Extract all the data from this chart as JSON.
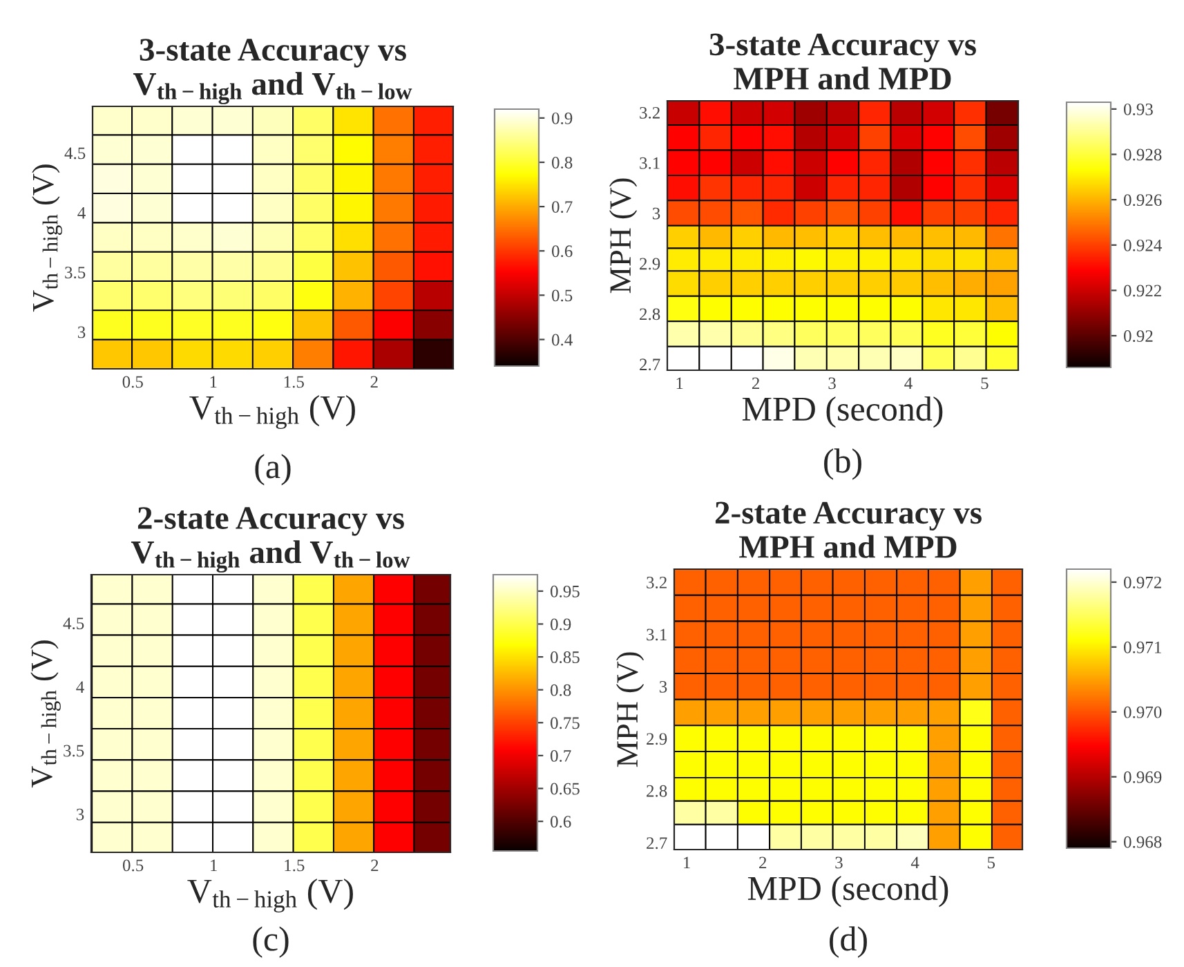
{
  "chart_data": [
    {
      "type": "heatmap",
      "title": "3-state Accuracy vs\nV$_{th−high}$ and V$_{th−low}$",
      "xlabel": "V$_{th−high}$ (V)",
      "ylabel": "V$_{th−high}$ (V)",
      "annotations": [
        "(a)"
      ],
      "x": [
        0.37,
        0.62,
        0.87,
        1.12,
        1.37,
        1.62,
        1.87,
        2.12,
        2.37
      ],
      "y": [
        4.77,
        4.53,
        4.28,
        4.04,
        3.79,
        3.55,
        3.3,
        3.06,
        2.81
      ],
      "xlim": [
        0.25,
        2.49
      ],
      "ylim": [
        2.69,
        4.89
      ],
      "xticks": [
        0.5,
        1,
        1.5,
        2
      ],
      "yticks": [
        3,
        3.5,
        4,
        4.5
      ],
      "clim": [
        0.34,
        0.92
      ],
      "cticks": [
        0.4,
        0.5,
        0.6,
        0.7,
        0.8,
        0.9
      ],
      "cells": [
        [
          0.89,
          0.89,
          0.895,
          0.895,
          0.88,
          0.83,
          0.75,
          0.65,
          0.58
        ],
        [
          0.895,
          0.895,
          0.92,
          0.92,
          0.885,
          0.835,
          0.77,
          0.66,
          0.58
        ],
        [
          0.9,
          0.895,
          0.92,
          0.92,
          0.885,
          0.83,
          0.765,
          0.655,
          0.58
        ],
        [
          0.9,
          0.895,
          0.92,
          0.92,
          0.885,
          0.83,
          0.765,
          0.655,
          0.575
        ],
        [
          0.885,
          0.885,
          0.89,
          0.895,
          0.875,
          0.83,
          0.745,
          0.65,
          0.575
        ],
        [
          0.865,
          0.865,
          0.87,
          0.87,
          0.855,
          0.81,
          0.72,
          0.63,
          0.565
        ],
        [
          0.835,
          0.835,
          0.845,
          0.84,
          0.83,
          0.78,
          0.705,
          0.61,
          0.49
        ],
        [
          0.79,
          0.79,
          0.795,
          0.79,
          0.78,
          0.72,
          0.63,
          0.55,
          0.45
        ],
        [
          0.725,
          0.725,
          0.74,
          0.74,
          0.73,
          0.66,
          0.57,
          0.48,
          0.37
        ]
      ]
    },
    {
      "type": "heatmap",
      "title": "3-state Accuracy vs\nMPH and MPD",
      "xlabel": "MPD (second)",
      "ylabel": "MPH (V)",
      "annotations": [
        "(b)"
      ],
      "x": [
        1.05,
        1.47,
        1.89,
        2.3,
        2.72,
        3.14,
        3.56,
        3.98,
        4.39,
        4.81,
        5.23
      ],
      "y": [
        3.2,
        3.15,
        3.1,
        3.05,
        3.0,
        2.95,
        2.91,
        2.86,
        2.81,
        2.76,
        2.71
      ],
      "xlim": [
        0.84,
        5.44
      ],
      "ylim": [
        2.688,
        3.223
      ],
      "xticks": [
        1,
        2,
        3,
        4,
        5
      ],
      "yticks": [
        2.7,
        2.8,
        2.9,
        3,
        3.1,
        3.2
      ],
      "clim": [
        0.9186,
        0.9303
      ],
      "cticks": [
        0.92,
        0.922,
        0.924,
        0.926,
        0.928,
        0.93
      ],
      "cells": [
        [
          0.9219,
          0.9231,
          0.922,
          0.9221,
          0.9212,
          0.9217,
          0.9235,
          0.9217,
          0.9221,
          0.9237,
          0.9205
        ],
        [
          0.9229,
          0.9235,
          0.9229,
          0.9231,
          0.9216,
          0.9221,
          0.924,
          0.9223,
          0.9229,
          0.9242,
          0.9212
        ],
        [
          0.9229,
          0.9229,
          0.922,
          0.9231,
          0.922,
          0.9229,
          0.9235,
          0.9215,
          0.9229,
          0.9237,
          0.9217
        ],
        [
          0.9231,
          0.9238,
          0.9235,
          0.9235,
          0.922,
          0.9235,
          0.9235,
          0.9215,
          0.9229,
          0.9237,
          0.9223
        ],
        [
          0.9242,
          0.9242,
          0.9244,
          0.9236,
          0.924,
          0.9244,
          0.924,
          0.9231,
          0.924,
          0.924,
          0.9235
        ],
        [
          0.9265,
          0.9261,
          0.9265,
          0.9261,
          0.9262,
          0.9265,
          0.9262,
          0.9261,
          0.9262,
          0.9261,
          0.9249
        ],
        [
          0.927,
          0.927,
          0.927,
          0.9271,
          0.9272,
          0.9271,
          0.9271,
          0.9269,
          0.9267,
          0.9268,
          0.9262
        ],
        [
          0.9267,
          0.9265,
          0.9265,
          0.9265,
          0.9265,
          0.9265,
          0.9265,
          0.9264,
          0.9262,
          0.9259,
          0.9257
        ],
        [
          0.9275,
          0.9273,
          0.9273,
          0.9273,
          0.9273,
          0.9273,
          0.9273,
          0.9273,
          0.9269,
          0.9269,
          0.9262
        ],
        [
          0.9293,
          0.9293,
          0.929,
          0.9288,
          0.9284,
          0.9284,
          0.9284,
          0.9283,
          0.9277,
          0.928,
          0.9273
        ],
        [
          0.9303,
          0.9303,
          0.9303,
          0.93,
          0.9294,
          0.9293,
          0.9294,
          0.9296,
          0.9283,
          0.929,
          0.9279
        ]
      ]
    },
    {
      "type": "heatmap",
      "title": "2-state Accuracy vs\nV$_{th−high}$ and V$_{th−low}$",
      "xlabel": "V$_{th−high}$ (V)",
      "ylabel": "V$_{th−high}$ (V)",
      "annotations": [
        "(c)"
      ],
      "x": [
        0.37,
        0.62,
        0.87,
        1.12,
        1.37,
        1.62,
        1.87,
        2.12,
        2.37
      ],
      "y": [
        4.77,
        4.53,
        4.28,
        4.04,
        3.79,
        3.55,
        3.3,
        3.06,
        2.81
      ],
      "xlim": [
        0.24,
        2.47
      ],
      "ylim": [
        2.7,
        4.88
      ],
      "xticks": [
        0.5,
        1,
        1.5,
        2
      ],
      "yticks": [
        3,
        3.5,
        4,
        4.5
      ],
      "clim": [
        0.555,
        0.975
      ],
      "cticks": [
        0.6,
        0.65,
        0.7,
        0.75,
        0.8,
        0.85,
        0.9,
        0.95
      ],
      "cells": [
        [
          0.954,
          0.954,
          0.975,
          0.975,
          0.954,
          0.9,
          0.812,
          0.708,
          0.622
        ],
        [
          0.954,
          0.954,
          0.975,
          0.975,
          0.954,
          0.9,
          0.812,
          0.708,
          0.622
        ],
        [
          0.954,
          0.954,
          0.975,
          0.975,
          0.954,
          0.9,
          0.812,
          0.708,
          0.622
        ],
        [
          0.954,
          0.954,
          0.975,
          0.975,
          0.954,
          0.9,
          0.812,
          0.708,
          0.622
        ],
        [
          0.954,
          0.954,
          0.975,
          0.975,
          0.954,
          0.9,
          0.812,
          0.708,
          0.622
        ],
        [
          0.954,
          0.954,
          0.975,
          0.975,
          0.954,
          0.9,
          0.812,
          0.708,
          0.622
        ],
        [
          0.954,
          0.954,
          0.975,
          0.975,
          0.954,
          0.9,
          0.812,
          0.708,
          0.622
        ],
        [
          0.954,
          0.954,
          0.975,
          0.975,
          0.954,
          0.9,
          0.812,
          0.708,
          0.622
        ],
        [
          0.954,
          0.954,
          0.975,
          0.975,
          0.954,
          0.9,
          0.812,
          0.708,
          0.622
        ]
      ]
    },
    {
      "type": "heatmap",
      "title": "2-state Accuracy vs\nMPH and MPD",
      "xlabel": "MPD (second)",
      "ylabel": "MPH (V)",
      "annotations": [
        "(d)"
      ],
      "x": [
        1.04,
        1.46,
        1.88,
        2.3,
        2.71,
        3.13,
        3.55,
        3.97,
        4.38,
        4.8,
        5.22
      ],
      "y": [
        3.2,
        3.15,
        3.1,
        3.05,
        3.0,
        2.95,
        2.9,
        2.85,
        2.8,
        2.76,
        2.71
      ],
      "xlim": [
        0.836,
        5.41
      ],
      "ylim": [
        2.687,
        3.225
      ],
      "xticks": [
        1,
        2,
        3,
        4,
        5
      ],
      "yticks": [
        2.7,
        2.8,
        2.9,
        3,
        3.1,
        3.2
      ],
      "clim": [
        0.9679,
        0.9722
      ],
      "cticks": [
        0.968,
        0.969,
        {
          "value": 0.97,
          "label": "0.970"
        },
        0.971,
        0.972
      ],
      "cells": [
        [
          0.9701,
          0.9701,
          0.9701,
          0.9701,
          0.9701,
          0.9701,
          0.9701,
          0.9701,
          0.9701,
          0.9705,
          0.9701
        ],
        [
          0.9701,
          0.9701,
          0.9701,
          0.9701,
          0.9701,
          0.9701,
          0.9701,
          0.9701,
          0.9701,
          0.9705,
          0.9701
        ],
        [
          0.9701,
          0.9701,
          0.9701,
          0.9701,
          0.9701,
          0.9701,
          0.9701,
          0.9701,
          0.9701,
          0.9705,
          0.9701
        ],
        [
          0.9701,
          0.9701,
          0.9701,
          0.9701,
          0.9701,
          0.9701,
          0.9701,
          0.9701,
          0.9701,
          0.9705,
          0.9701
        ],
        [
          0.9701,
          0.9701,
          0.9701,
          0.9701,
          0.9701,
          0.9701,
          0.9701,
          0.9701,
          0.9701,
          0.9705,
          0.9701
        ],
        [
          0.9705,
          0.9705,
          0.9705,
          0.9705,
          0.9705,
          0.9705,
          0.9705,
          0.9705,
          0.9705,
          0.9712,
          0.9701
        ],
        [
          0.9711,
          0.9711,
          0.9711,
          0.9711,
          0.9711,
          0.9711,
          0.9711,
          0.9711,
          0.9705,
          0.9711,
          0.9701
        ],
        [
          0.9711,
          0.9711,
          0.9711,
          0.9711,
          0.9711,
          0.9711,
          0.9711,
          0.9711,
          0.9705,
          0.9711,
          0.9701
        ],
        [
          0.9711,
          0.9711,
          0.9711,
          0.9711,
          0.9711,
          0.9711,
          0.9711,
          0.9711,
          0.9705,
          0.9711,
          0.9701
        ],
        [
          0.9718,
          0.9718,
          0.9711,
          0.9711,
          0.9711,
          0.9711,
          0.9711,
          0.9711,
          0.9705,
          0.9711,
          0.9701
        ],
        [
          0.9722,
          0.9722,
          0.9722,
          0.9718,
          0.9718,
          0.9718,
          0.9718,
          0.9719,
          0.9705,
          0.9711,
          0.9701
        ]
      ]
    }
  ]
}
